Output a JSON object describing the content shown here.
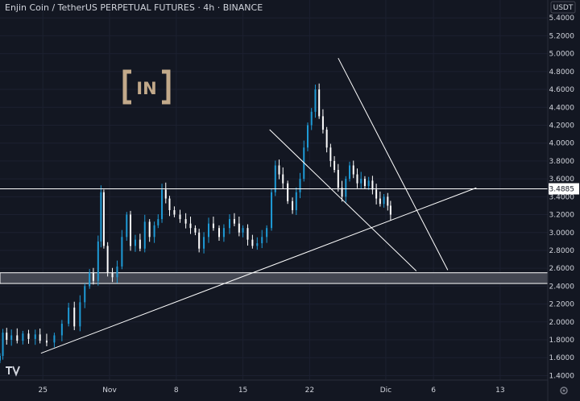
{
  "header": {
    "title": "Enjin Coin / TetherUS PERPETUAL FUTURES · 4h · BINANCE"
  },
  "currency": "USDT",
  "logo": {
    "text": "IN",
    "color": "#c2a98a"
  },
  "tv_logo": "tradingview-logo",
  "colors": {
    "background": "#131722",
    "up": "#26a69a",
    "down": "#ef5350",
    "candle_up": "#1e9bd7",
    "candle_down": "#ffffff",
    "line": "#ffffff",
    "axis_text": "#d1d4dc",
    "price_label_bg": "#ffffff"
  },
  "chart_data": {
    "type": "candlestick",
    "title": "Enjin Coin / TetherUS PERPETUAL FUTURES · 4h · BINANCE",
    "x_ticks": [
      {
        "label": "25",
        "day": 0
      },
      {
        "label": "Nov",
        "day": 7
      },
      {
        "label": "8",
        "day": 14
      },
      {
        "label": "15",
        "day": 21
      },
      {
        "label": "22",
        "day": 28
      },
      {
        "label": "Dic",
        "day": 36
      },
      {
        "label": "6",
        "day": 41
      },
      {
        "label": "13",
        "day": 48
      }
    ],
    "x_range": [
      -4.5,
      53
    ],
    "y_ticks": [
      1.4,
      1.6,
      1.8,
      2.0,
      2.2,
      2.4,
      2.6,
      2.8,
      3.0,
      3.2,
      3.4,
      3.6,
      3.8,
      4.0,
      4.2,
      4.4,
      4.6,
      4.8,
      5.0,
      5.2,
      5.4
    ],
    "y_range": [
      1.35,
      5.6
    ],
    "price_label": "3.4885",
    "support_zone": [
      2.43,
      2.55
    ],
    "horizontal_lines": [
      3.4885
    ],
    "trend_lines": [
      {
        "from": [
          -0.2,
          1.65
        ],
        "to": [
          45.5,
          3.5
        ]
      },
      {
        "from": [
          31.0,
          4.95
        ],
        "to": [
          42.5,
          2.58
        ]
      },
      {
        "from": [
          23.8,
          4.15
        ],
        "to": [
          39.2,
          2.57
        ]
      }
    ],
    "series": [
      {
        "day": -4.5,
        "close": 1.62
      },
      {
        "day": -4.2,
        "close": 1.88
      },
      {
        "day": -3.8,
        "close": 1.8
      },
      {
        "day": -3.3,
        "close": 1.85
      },
      {
        "day": -2.7,
        "close": 1.79
      },
      {
        "day": -2.1,
        "close": 1.87
      },
      {
        "day": -1.5,
        "close": 1.81
      },
      {
        "day": -0.8,
        "close": 1.86
      },
      {
        "day": -0.3,
        "close": 1.79
      },
      {
        "day": 0.4,
        "close": 1.77
      },
      {
        "day": 1.2,
        "close": 1.85
      },
      {
        "day": 2.0,
        "close": 1.98
      },
      {
        "day": 2.7,
        "close": 2.16
      },
      {
        "day": 3.3,
        "close": 1.95
      },
      {
        "day": 3.9,
        "close": 2.22
      },
      {
        "day": 4.4,
        "close": 2.4
      },
      {
        "day": 4.9,
        "close": 2.55
      },
      {
        "day": 5.3,
        "close": 2.46
      },
      {
        "day": 5.8,
        "close": 2.9
      },
      {
        "day": 6.1,
        "close": 3.45
      },
      {
        "day": 6.4,
        "close": 2.85
      },
      {
        "day": 6.8,
        "close": 2.55
      },
      {
        "day": 7.3,
        "close": 2.5
      },
      {
        "day": 7.8,
        "close": 2.62
      },
      {
        "day": 8.3,
        "close": 2.95
      },
      {
        "day": 8.8,
        "close": 3.2
      },
      {
        "day": 9.2,
        "close": 2.85
      },
      {
        "day": 9.7,
        "close": 2.92
      },
      {
        "day": 10.2,
        "close": 2.82
      },
      {
        "day": 10.7,
        "close": 3.12
      },
      {
        "day": 11.2,
        "close": 2.95
      },
      {
        "day": 11.7,
        "close": 3.08
      },
      {
        "day": 12.1,
        "close": 3.15
      },
      {
        "day": 12.5,
        "close": 3.48
      },
      {
        "day": 12.9,
        "close": 3.38
      },
      {
        "day": 13.3,
        "close": 3.25
      },
      {
        "day": 13.8,
        "close": 3.2
      },
      {
        "day": 14.4,
        "close": 3.15
      },
      {
        "day": 15.0,
        "close": 3.1
      },
      {
        "day": 15.5,
        "close": 3.05
      },
      {
        "day": 16.0,
        "close": 3.0
      },
      {
        "day": 16.4,
        "close": 2.82
      },
      {
        "day": 16.9,
        "close": 2.95
      },
      {
        "day": 17.4,
        "close": 3.1
      },
      {
        "day": 17.9,
        "close": 3.05
      },
      {
        "day": 18.5,
        "close": 2.95
      },
      {
        "day": 19.0,
        "close": 3.05
      },
      {
        "day": 19.6,
        "close": 3.15
      },
      {
        "day": 20.1,
        "close": 3.1
      },
      {
        "day": 20.6,
        "close": 3.0
      },
      {
        "day": 21.0,
        "close": 3.05
      },
      {
        "day": 21.5,
        "close": 2.92
      },
      {
        "day": 22.0,
        "close": 2.85
      },
      {
        "day": 22.5,
        "close": 2.88
      },
      {
        "day": 23.0,
        "close": 2.95
      },
      {
        "day": 23.5,
        "close": 3.05
      },
      {
        "day": 24.0,
        "close": 3.45
      },
      {
        "day": 24.4,
        "close": 3.75
      },
      {
        "day": 24.8,
        "close": 3.65
      },
      {
        "day": 25.2,
        "close": 3.55
      },
      {
        "day": 25.7,
        "close": 3.35
      },
      {
        "day": 26.2,
        "close": 3.25
      },
      {
        "day": 26.6,
        "close": 3.45
      },
      {
        "day": 27.0,
        "close": 3.6
      },
      {
        "day": 27.4,
        "close": 3.95
      },
      {
        "day": 27.8,
        "close": 4.2
      },
      {
        "day": 28.2,
        "close": 4.35
      },
      {
        "day": 28.6,
        "close": 4.6
      },
      {
        "day": 29.0,
        "close": 4.3
      },
      {
        "day": 29.4,
        "close": 4.15
      },
      {
        "day": 29.8,
        "close": 3.95
      },
      {
        "day": 30.2,
        "close": 3.8
      },
      {
        "day": 30.6,
        "close": 3.7
      },
      {
        "day": 31.0,
        "close": 3.5
      },
      {
        "day": 31.4,
        "close": 3.4
      },
      {
        "day": 31.8,
        "close": 3.6
      },
      {
        "day": 32.2,
        "close": 3.75
      },
      {
        "day": 32.6,
        "close": 3.65
      },
      {
        "day": 33.0,
        "close": 3.55
      },
      {
        "day": 33.4,
        "close": 3.6
      },
      {
        "day": 33.8,
        "close": 3.52
      },
      {
        "day": 34.2,
        "close": 3.58
      },
      {
        "day": 34.6,
        "close": 3.48
      },
      {
        "day": 35.0,
        "close": 3.38
      },
      {
        "day": 35.4,
        "close": 3.32
      },
      {
        "day": 35.8,
        "close": 3.4
      },
      {
        "day": 36.2,
        "close": 3.3
      },
      {
        "day": 36.5,
        "close": 3.2
      }
    ]
  }
}
